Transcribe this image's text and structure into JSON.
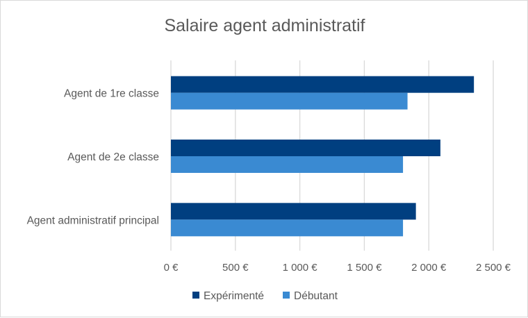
{
  "chart_data": {
    "type": "bar",
    "orientation": "horizontal",
    "title": "Salaire agent administratif",
    "categories": [
      "Agent de 1re classe",
      "Agent de 2e classe",
      "Agent administratif principal"
    ],
    "series": [
      {
        "name": "Expérimenté",
        "color": "#003f80",
        "values": [
          2350,
          2090,
          1900
        ]
      },
      {
        "name": "Débutant",
        "color": "#3a8ad2",
        "values": [
          1835,
          1800,
          1800
        ]
      }
    ],
    "xlim": [
      0,
      2500
    ],
    "xticks": [
      0,
      500,
      1000,
      1500,
      2000,
      2500
    ],
    "xtick_labels": [
      "0 €",
      "500 €",
      "1 000 €",
      "1 500 €",
      "2 000 €",
      "2 500 €"
    ],
    "grid": true,
    "legend": "bottom"
  }
}
